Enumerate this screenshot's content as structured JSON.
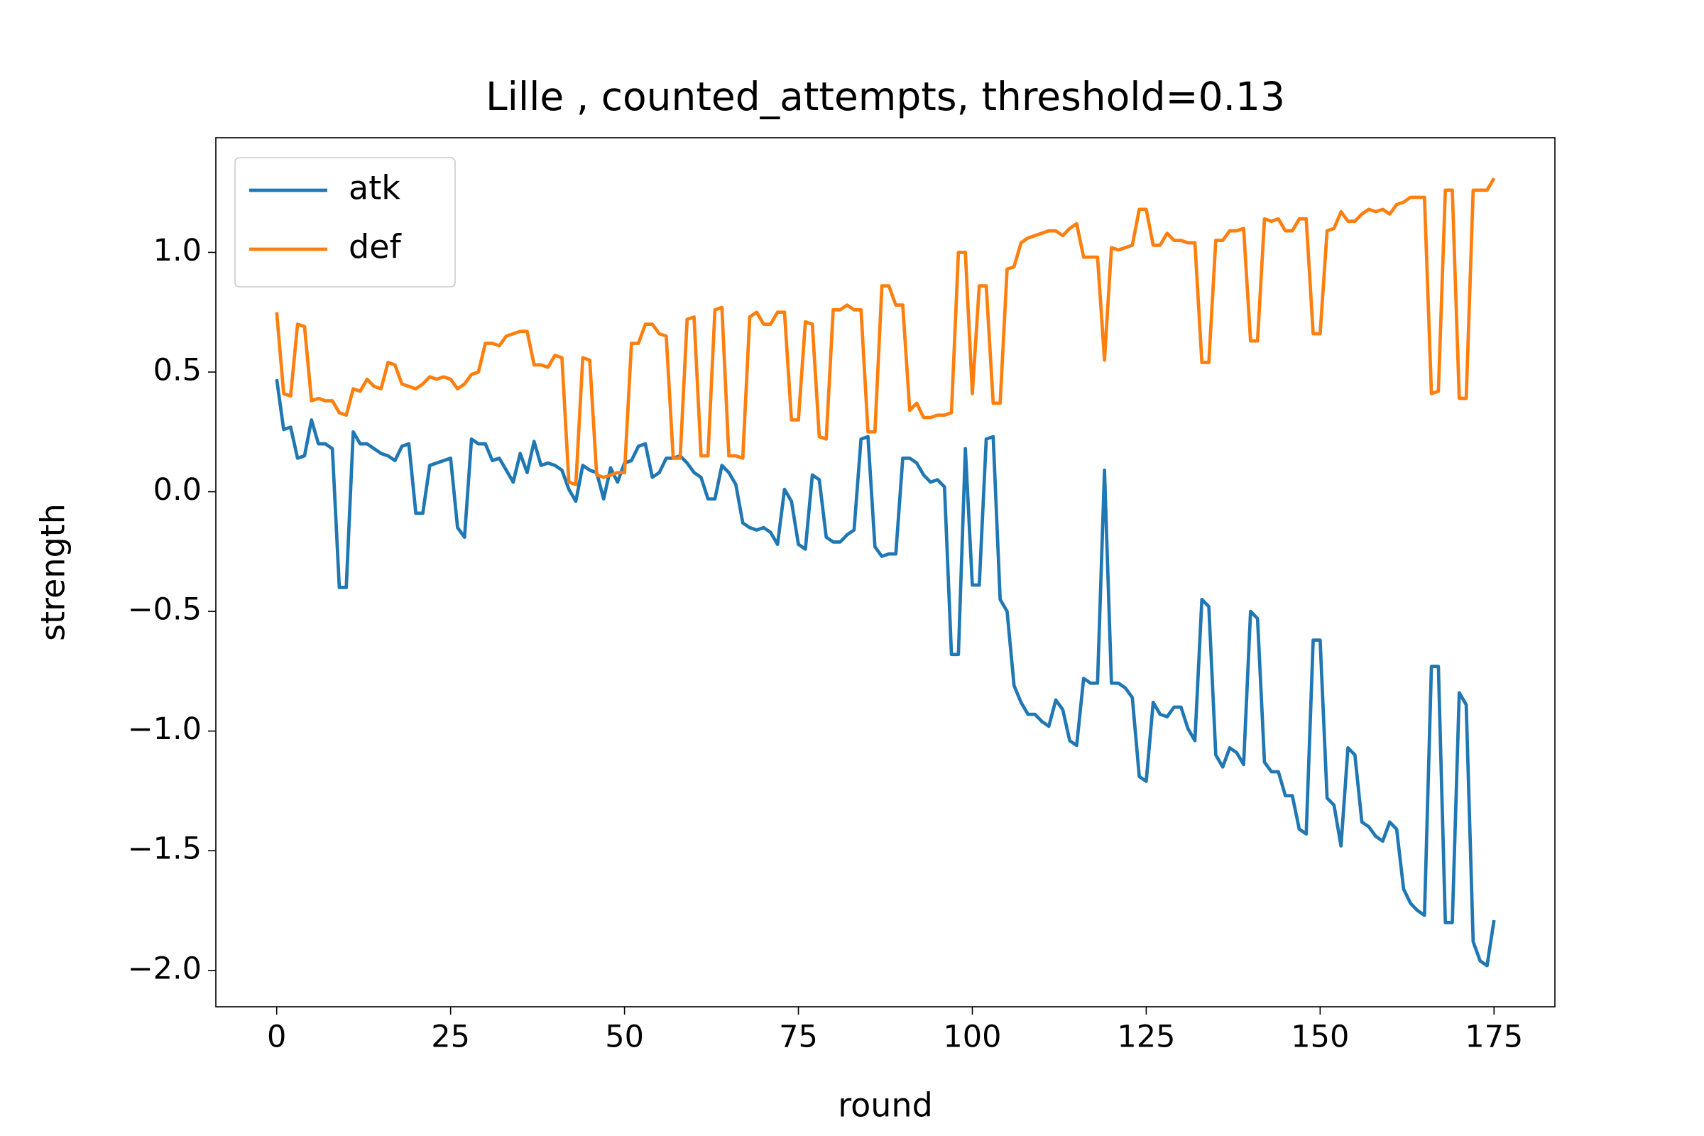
{
  "chart_data": {
    "type": "line",
    "title": "Lille , counted_attempts, threshold=0.13",
    "x_label": "round",
    "y_label": "strength",
    "x": [
      0,
      1,
      2,
      3,
      4,
      5,
      6,
      7,
      8,
      9,
      10,
      11,
      12,
      13,
      14,
      15,
      16,
      17,
      18,
      19,
      20,
      21,
      22,
      23,
      24,
      25,
      26,
      27,
      28,
      29,
      30,
      31,
      32,
      33,
      34,
      35,
      36,
      37,
      38,
      39,
      40,
      41,
      42,
      43,
      44,
      45,
      46,
      47,
      48,
      49,
      50,
      51,
      52,
      53,
      54,
      55,
      56,
      57,
      58,
      59,
      60,
      61,
      62,
      63,
      64,
      65,
      66,
      67,
      68,
      69,
      70,
      71,
      72,
      73,
      74,
      75,
      76,
      77,
      78,
      79,
      80,
      81,
      82,
      83,
      84,
      85,
      86,
      87,
      88,
      89,
      90,
      91,
      92,
      93,
      94,
      95,
      96,
      97,
      98,
      99,
      100,
      101,
      102,
      103,
      104,
      105,
      106,
      107,
      108,
      109,
      110,
      111,
      112,
      113,
      114,
      115,
      116,
      117,
      118,
      119,
      120,
      121,
      122,
      123,
      124,
      125,
      126,
      127,
      128,
      129,
      130,
      131,
      132,
      133,
      134,
      135,
      136,
      137,
      138,
      139,
      140,
      141,
      142,
      143,
      144,
      145,
      146,
      147,
      148,
      149,
      150,
      151,
      152,
      153,
      154,
      155,
      156,
      157,
      158,
      159,
      160,
      161,
      162,
      163,
      164,
      165,
      166,
      167,
      168,
      169,
      170,
      171,
      172,
      173,
      174,
      175
    ],
    "series": [
      {
        "name": "atk",
        "color": "#1f77b4",
        "values": [
          0.47,
          0.26,
          0.27,
          0.14,
          0.15,
          0.3,
          0.2,
          0.2,
          0.18,
          -0.4,
          -0.4,
          0.25,
          0.2,
          0.2,
          0.18,
          0.16,
          0.15,
          0.13,
          0.19,
          0.2,
          -0.09,
          -0.09,
          0.11,
          0.12,
          0.13,
          0.14,
          -0.15,
          -0.19,
          0.22,
          0.2,
          0.2,
          0.13,
          0.14,
          0.09,
          0.04,
          0.16,
          0.08,
          0.21,
          0.11,
          0.12,
          0.11,
          0.09,
          0.01,
          -0.04,
          0.11,
          0.09,
          0.08,
          -0.03,
          0.1,
          0.04,
          0.12,
          0.13,
          0.19,
          0.2,
          0.06,
          0.08,
          0.14,
          0.14,
          0.15,
          0.12,
          0.08,
          0.06,
          -0.03,
          -0.03,
          0.11,
          0.08,
          0.03,
          -0.13,
          -0.15,
          -0.16,
          -0.15,
          -0.17,
          -0.22,
          0.01,
          -0.04,
          -0.22,
          -0.24,
          0.07,
          0.05,
          -0.19,
          -0.21,
          -0.21,
          -0.18,
          -0.16,
          0.22,
          0.23,
          -0.23,
          -0.27,
          -0.26,
          -0.26,
          0.14,
          0.14,
          0.12,
          0.07,
          0.04,
          0.05,
          0.02,
          -0.68,
          -0.68,
          0.18,
          -0.39,
          -0.39,
          0.22,
          0.23,
          -0.45,
          -0.5,
          -0.81,
          -0.88,
          -0.93,
          -0.93,
          -0.96,
          -0.98,
          -0.87,
          -0.91,
          -1.04,
          -1.06,
          -0.78,
          -0.8,
          -0.8,
          0.09,
          -0.8,
          -0.8,
          -0.82,
          -0.86,
          -1.19,
          -1.21,
          -0.88,
          -0.93,
          -0.94,
          -0.9,
          -0.9,
          -0.99,
          -1.04,
          -0.45,
          -0.48,
          -1.1,
          -1.15,
          -1.07,
          -1.09,
          -1.14,
          -0.5,
          -0.53,
          -1.13,
          -1.17,
          -1.17,
          -1.27,
          -1.27,
          -1.41,
          -1.43,
          -0.62,
          -0.62,
          -1.28,
          -1.31,
          -1.48,
          -1.07,
          -1.1,
          -1.38,
          -1.4,
          -1.44,
          -1.46,
          -1.38,
          -1.41,
          -1.66,
          -1.72,
          -1.75,
          -1.77,
          -0.73,
          -0.73,
          -1.8,
          -1.8,
          -0.84,
          -0.89,
          -1.88,
          -1.96,
          -1.98,
          -1.79
        ]
      },
      {
        "name": "def",
        "color": "#ff7f0e",
        "values": [
          0.75,
          0.41,
          0.4,
          0.7,
          0.69,
          0.38,
          0.39,
          0.38,
          0.38,
          0.33,
          0.32,
          0.43,
          0.42,
          0.47,
          0.44,
          0.43,
          0.54,
          0.53,
          0.45,
          0.44,
          0.43,
          0.45,
          0.48,
          0.47,
          0.48,
          0.47,
          0.43,
          0.45,
          0.49,
          0.5,
          0.62,
          0.62,
          0.61,
          0.65,
          0.66,
          0.67,
          0.67,
          0.53,
          0.53,
          0.52,
          0.57,
          0.56,
          0.04,
          0.03,
          0.56,
          0.55,
          0.07,
          0.06,
          0.07,
          0.08,
          0.08,
          0.62,
          0.62,
          0.7,
          0.7,
          0.66,
          0.65,
          0.14,
          0.14,
          0.72,
          0.73,
          0.15,
          0.15,
          0.76,
          0.77,
          0.15,
          0.15,
          0.14,
          0.73,
          0.75,
          0.7,
          0.7,
          0.75,
          0.75,
          0.3,
          0.3,
          0.71,
          0.7,
          0.23,
          0.22,
          0.76,
          0.76,
          0.78,
          0.76,
          0.76,
          0.25,
          0.25,
          0.86,
          0.86,
          0.78,
          0.78,
          0.34,
          0.37,
          0.31,
          0.31,
          0.32,
          0.32,
          0.33,
          1.0,
          1.0,
          0.41,
          0.86,
          0.86,
          0.37,
          0.37,
          0.93,
          0.94,
          1.04,
          1.06,
          1.07,
          1.08,
          1.09,
          1.09,
          1.07,
          1.1,
          1.12,
          0.98,
          0.98,
          0.98,
          0.55,
          1.02,
          1.01,
          1.02,
          1.03,
          1.18,
          1.18,
          1.03,
          1.03,
          1.08,
          1.05,
          1.05,
          1.04,
          1.04,
          0.54,
          0.54,
          1.05,
          1.05,
          1.09,
          1.09,
          1.1,
          0.63,
          0.63,
          1.14,
          1.13,
          1.14,
          1.09,
          1.09,
          1.14,
          1.14,
          0.66,
          0.66,
          1.09,
          1.1,
          1.17,
          1.13,
          1.13,
          1.16,
          1.18,
          1.17,
          1.18,
          1.16,
          1.2,
          1.21,
          1.23,
          1.23,
          1.23,
          0.41,
          0.42,
          1.26,
          1.26,
          0.39,
          0.39,
          1.26,
          1.26,
          1.26,
          1.31
        ]
      }
    ],
    "xlim": [
      -8.75,
      183.75
    ],
    "xticks": [
      0,
      25,
      50,
      75,
      100,
      125,
      150,
      175
    ],
    "ylim": [
      -2.152,
      1.479
    ],
    "yticks": [
      {
        "value": -2,
        "label": "−2.0"
      },
      {
        "value": -1.5,
        "label": "−1.5"
      },
      {
        "value": -1,
        "label": "−1.0"
      },
      {
        "value": -0.5,
        "label": "−0.5"
      },
      {
        "value": 0,
        "label": "0.0"
      },
      0.5,
      {
        "value": 1,
        "label": "1.0"
      }
    ],
    "legend": "upper left",
    "grid": false
  }
}
